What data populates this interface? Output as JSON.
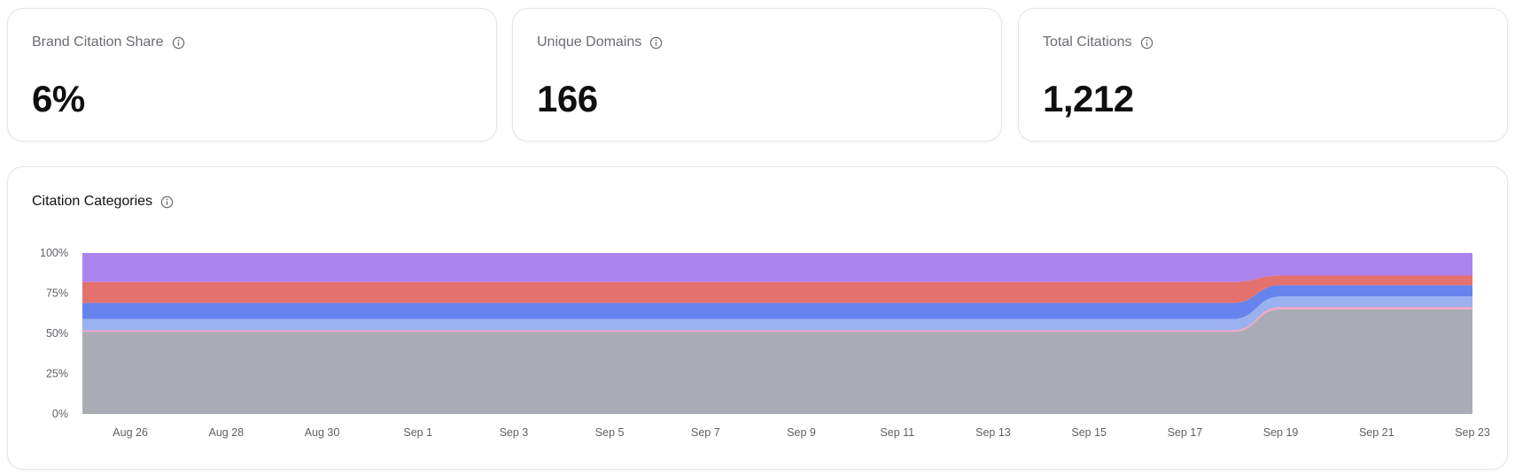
{
  "kpis": [
    {
      "title": "Brand Citation Share",
      "value": "6%"
    },
    {
      "title": "Unique Domains",
      "value": "166"
    },
    {
      "title": "Total Citations",
      "value": "1,212"
    }
  ],
  "citation_card": {
    "title": "Citation Categories"
  },
  "colors": {
    "gray": "#a9acb4",
    "pink": "#f4a3c7",
    "light_blue": "#99b1ee",
    "blue": "#6783ee",
    "red": "#e4716d",
    "purple": "#ac82ec"
  },
  "chart_data": {
    "type": "area",
    "stacked": "percent",
    "ylim": [
      0,
      100
    ],
    "y_ticks": [
      "0%",
      "25%",
      "50%",
      "75%",
      "100%"
    ],
    "x_tick_labels": [
      "Aug 26",
      "Aug 28",
      "Aug 30",
      "Sep 1",
      "Sep 3",
      "Sep 5",
      "Sep 7",
      "Sep 9",
      "Sep 11",
      "Sep 13",
      "Sep 15",
      "Sep 17",
      "Sep 19",
      "Sep 21",
      "Sep 23"
    ],
    "x": [
      "Aug 25",
      "Aug 26",
      "Aug 27",
      "Aug 28",
      "Aug 29",
      "Aug 30",
      "Aug 31",
      "Sep 1",
      "Sep 2",
      "Sep 3",
      "Sep 4",
      "Sep 5",
      "Sep 6",
      "Sep 7",
      "Sep 8",
      "Sep 9",
      "Sep 10",
      "Sep 11",
      "Sep 12",
      "Sep 13",
      "Sep 14",
      "Sep 15",
      "Sep 16",
      "Sep 17",
      "Sep 18",
      "Sep 19",
      "Sep 20",
      "Sep 21",
      "Sep 22",
      "Sep 23"
    ],
    "series": [
      {
        "color": "#a9acb4",
        "values": [
          51,
          51,
          51,
          51,
          51,
          51,
          51,
          51,
          51,
          51,
          51,
          51,
          51,
          51,
          51,
          51,
          51,
          51,
          51,
          51,
          51,
          51,
          51,
          51,
          51,
          65,
          65,
          65,
          65,
          65
        ]
      },
      {
        "color": "#f4a3c7",
        "values": [
          1,
          1,
          1,
          1,
          1,
          1,
          1,
          1,
          1,
          1,
          1,
          1,
          1,
          1,
          1,
          1,
          1,
          1,
          1,
          1,
          1,
          1,
          1,
          1,
          1,
          1.5,
          1.5,
          1.5,
          1.5,
          1.5
        ]
      },
      {
        "color": "#99b1ee",
        "values": [
          7,
          7,
          7,
          7,
          7,
          7,
          7,
          7,
          7,
          7,
          7,
          7,
          7,
          7,
          7,
          7,
          7,
          7,
          7,
          7,
          7,
          7,
          7,
          7,
          7,
          6.5,
          6.5,
          6.5,
          6.5,
          6.5
        ]
      },
      {
        "color": "#6783ee",
        "values": [
          10,
          10,
          10,
          10,
          10,
          10,
          10,
          10,
          10,
          10,
          10,
          10,
          10,
          10,
          10,
          10,
          10,
          10,
          10,
          10,
          10,
          10,
          10,
          10,
          10,
          7,
          7,
          7,
          7,
          7
        ]
      },
      {
        "color": "#e4716d",
        "values": [
          13,
          13,
          13,
          13,
          13,
          13,
          13,
          13,
          13,
          13,
          13,
          13,
          13,
          13,
          13,
          13,
          13,
          13,
          13,
          13,
          13,
          13,
          13,
          13,
          13,
          6,
          6,
          6,
          6,
          6
        ]
      },
      {
        "color": "#ac82ec",
        "values": [
          18,
          18,
          18,
          18,
          18,
          18,
          18,
          18,
          18,
          18,
          18,
          18,
          18,
          18,
          18,
          18,
          18,
          18,
          18,
          18,
          18,
          18,
          18,
          18,
          18,
          14,
          14,
          14,
          14,
          14
        ]
      }
    ]
  }
}
